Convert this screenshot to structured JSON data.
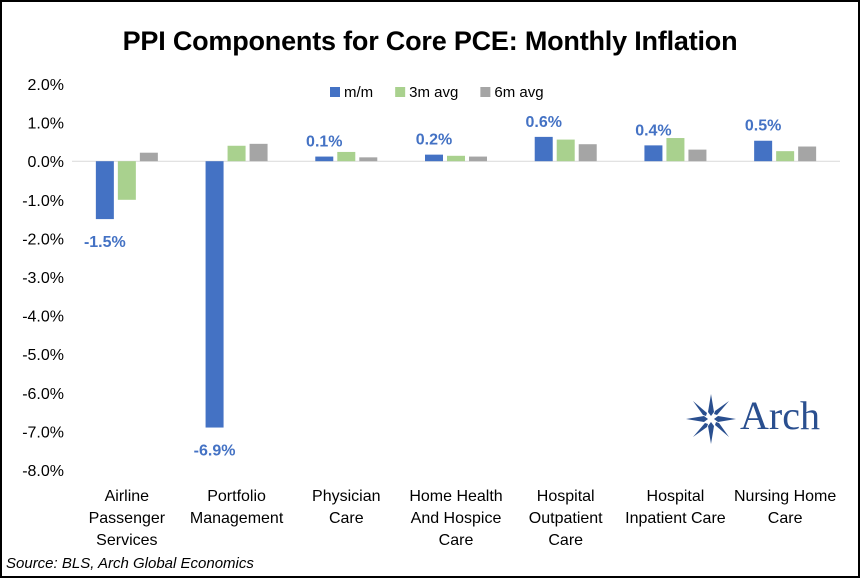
{
  "title": "PPI Components for Core PCE: Monthly Inflation",
  "source": "Source: BLS, Arch Global Economics",
  "logo_text": "Arch",
  "colors": {
    "m/m": "#4472c4",
    "3m avg": "#a9d18e",
    "6m avg": "#a5a5a5",
    "label": "#4472c4"
  },
  "chart_data": {
    "type": "bar",
    "categories": [
      [
        "Airline",
        "Passenger",
        "Services"
      ],
      [
        "Portfolio",
        "Management"
      ],
      [
        "Physician",
        "Care"
      ],
      [
        "Home Health",
        "And Hospice",
        "Care"
      ],
      [
        "Hospital",
        "Outpatient",
        "Care"
      ],
      [
        "Hospital",
        "Inpatient Care"
      ],
      [
        "Nursing Home",
        "Care"
      ]
    ],
    "series": [
      {
        "name": "m/m",
        "values": [
          -1.5,
          -6.9,
          0.12,
          0.17,
          0.63,
          0.41,
          0.53
        ]
      },
      {
        "name": "3m avg",
        "values": [
          -1.0,
          0.4,
          0.24,
          0.14,
          0.56,
          0.6,
          0.26
        ]
      },
      {
        "name": "6m avg",
        "values": [
          0.22,
          0.45,
          0.1,
          0.12,
          0.44,
          0.3,
          0.38
        ]
      }
    ],
    "data_labels": [
      "-1.5%",
      "-6.9%",
      "0.1%",
      "0.2%",
      "0.6%",
      "0.4%",
      "0.5%"
    ],
    "y_ticks": [
      "2.0%",
      "1.0%",
      "0.0%",
      "-1.0%",
      "-2.0%",
      "-3.0%",
      "-4.0%",
      "-5.0%",
      "-6.0%",
      "-7.0%",
      "-8.0%"
    ],
    "ylim": [
      -8,
      2
    ],
    "legend": "top-center",
    "grid": false
  }
}
